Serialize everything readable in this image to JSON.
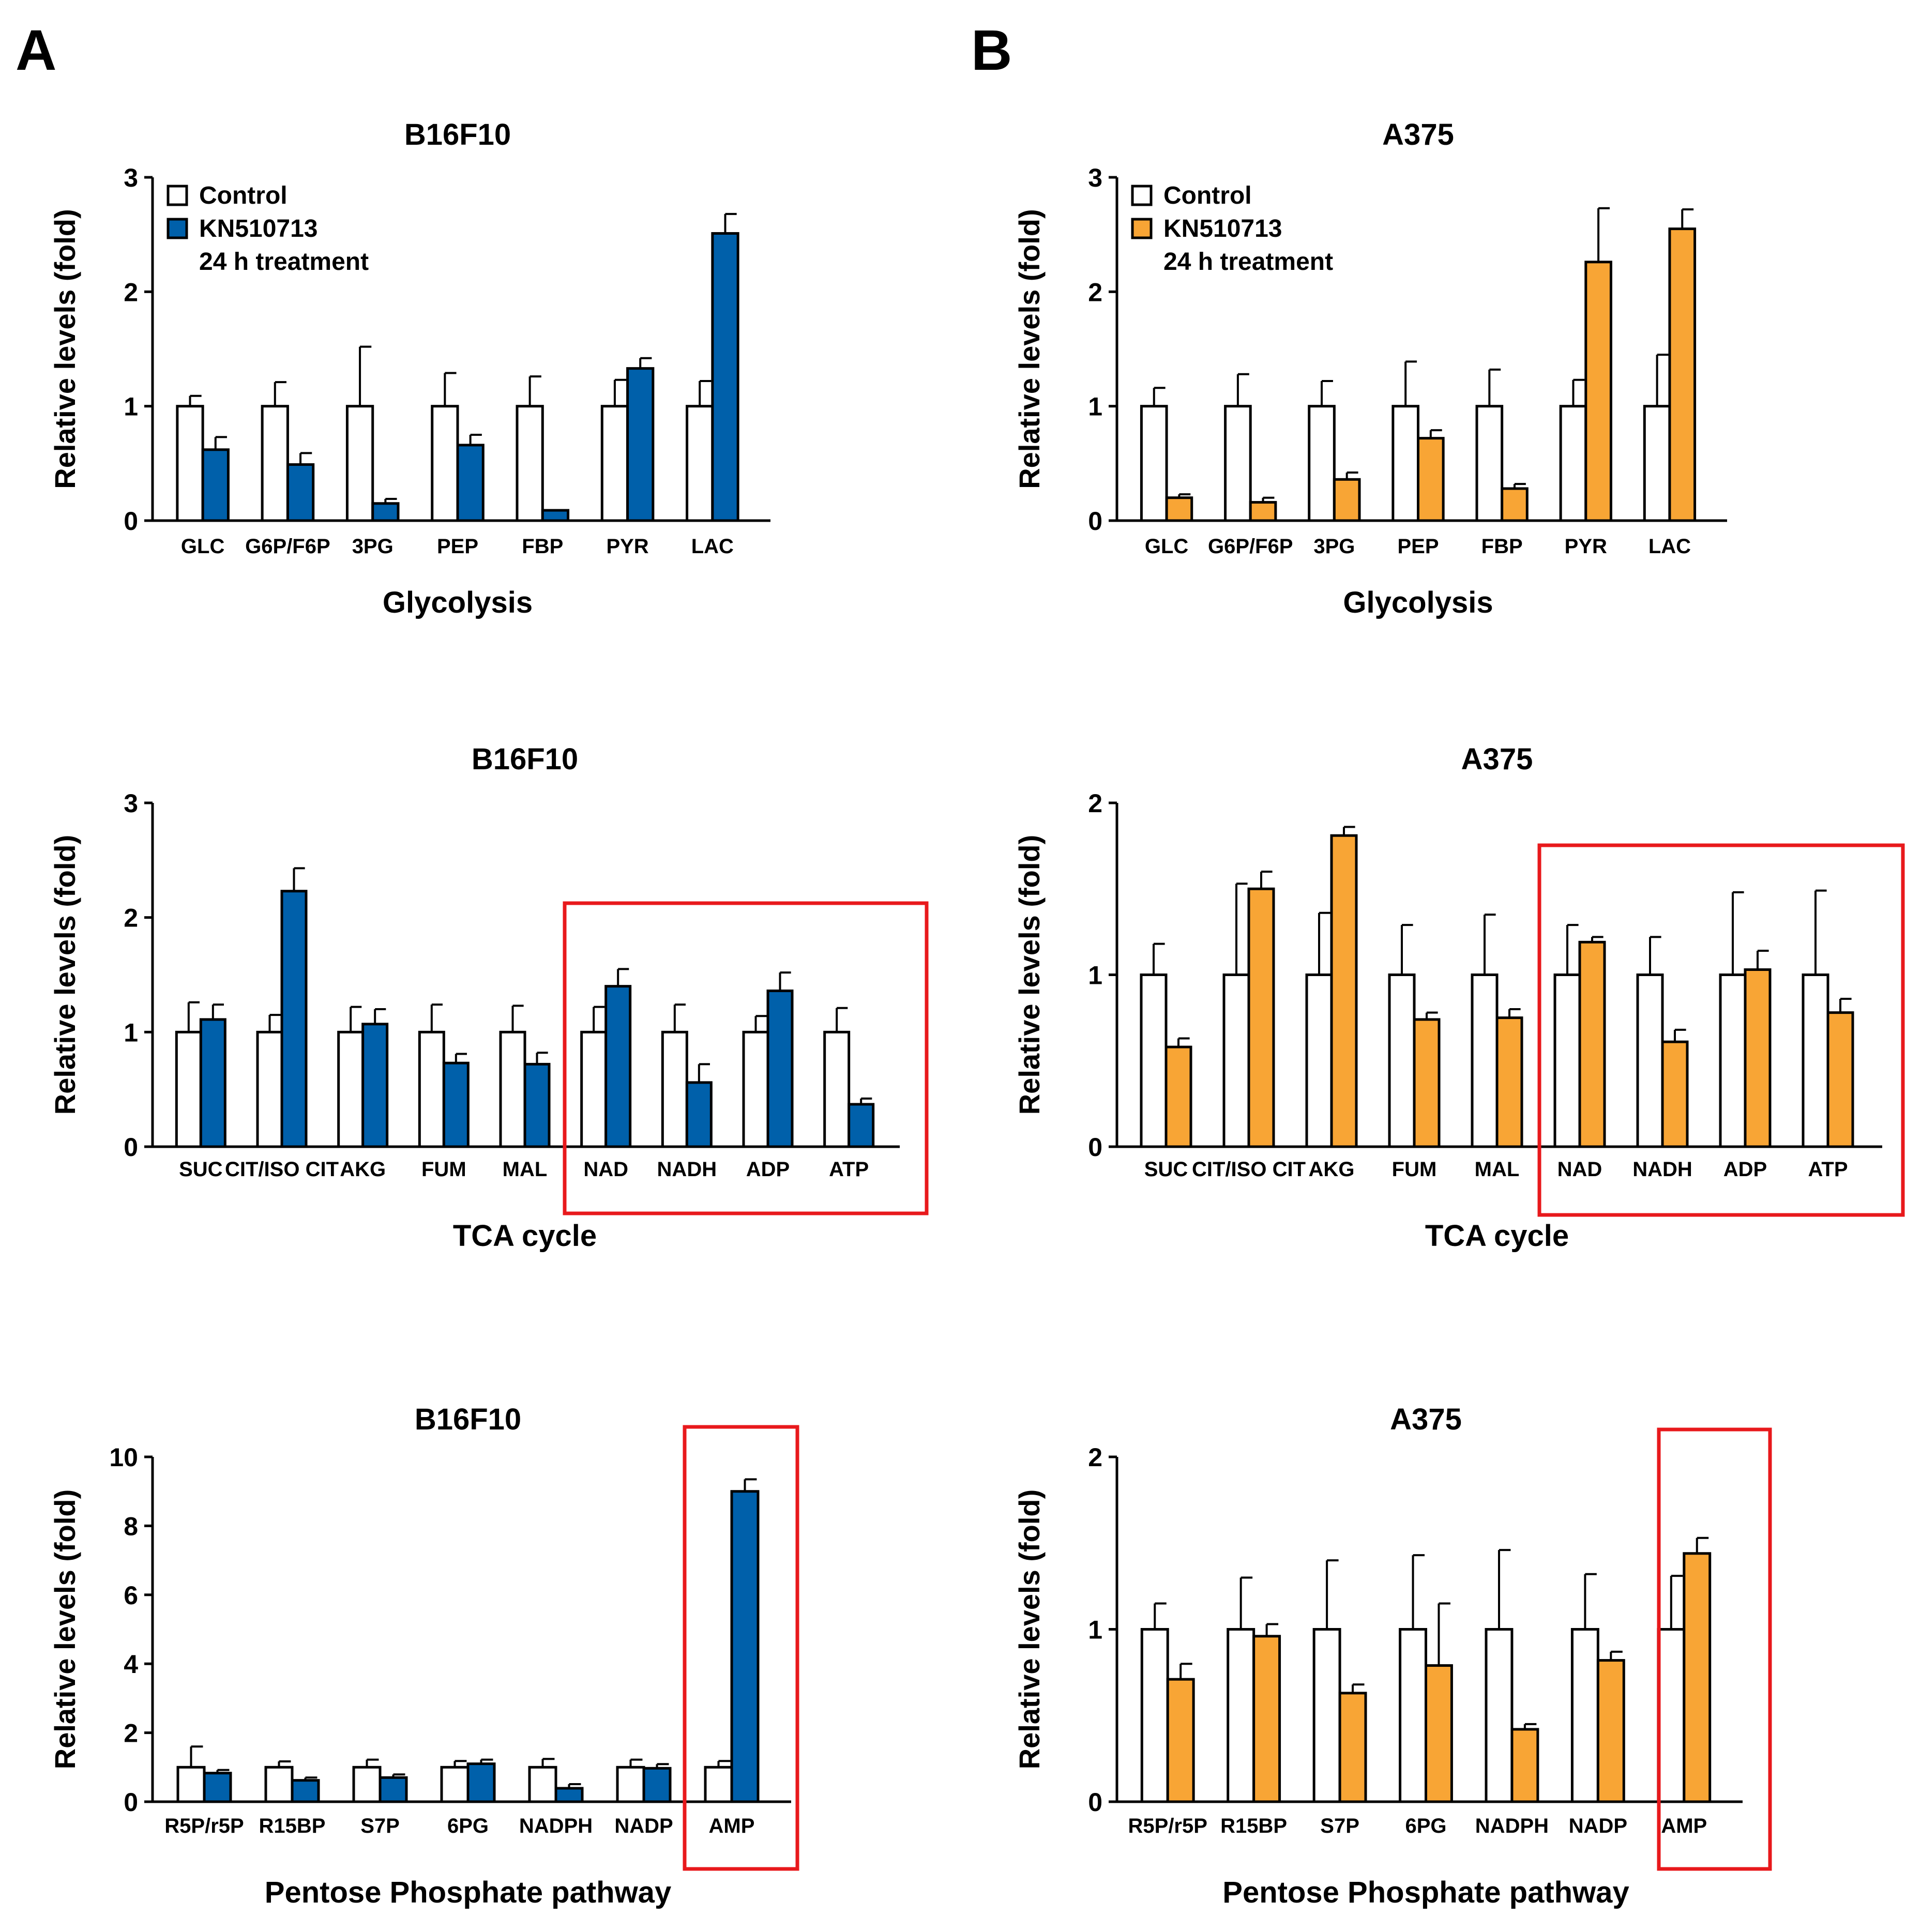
{
  "panel_labels": [
    "A",
    "B"
  ],
  "legend": {
    "control": "Control",
    "treatment": "KN510713",
    "note": "24 h treatment"
  },
  "colors": {
    "control": "#ffffff",
    "blue": "#0060aa",
    "orange": "#f8a535",
    "highlight": "#e8191c"
  },
  "chart_data": [
    {
      "id": "A-glycolysis",
      "type": "bar",
      "panel": "A",
      "title": "B16F10",
      "xlabel": "Glycolysis",
      "ylabel": "Relative levels (fold)",
      "ylim": [
        0,
        3
      ],
      "yticks": [
        "0",
        "1",
        "2",
        "3"
      ],
      "show_legend": true,
      "categories": [
        "GLC",
        "G6P/F6P",
        "3PG",
        "PEP",
        "FBP",
        "PYR",
        "LAC"
      ],
      "series": [
        {
          "name": "Control",
          "color": "#ffffff",
          "values": [
            1,
            1,
            1,
            1,
            1,
            1,
            1
          ],
          "errors": [
            0.09,
            0.21,
            0.52,
            0.29,
            0.26,
            0.23,
            0.22
          ]
        },
        {
          "name": "KN510713",
          "color": "#0060aa",
          "values": [
            0.62,
            0.49,
            0.15,
            0.66,
            0.09,
            1.33,
            2.51
          ],
          "errors": [
            0.11,
            0.1,
            0.04,
            0.09,
            0.0,
            0.09,
            0.17
          ]
        }
      ]
    },
    {
      "id": "B-glycolysis",
      "type": "bar",
      "panel": "B",
      "title": "A375",
      "xlabel": "Glycolysis",
      "ylabel": "Relative levels (fold)",
      "ylim": [
        0,
        3
      ],
      "yticks": [
        "0",
        "1",
        "2",
        "3"
      ],
      "show_legend": true,
      "categories": [
        "GLC",
        "G6P/F6P",
        "3PG",
        "PEP",
        "FBP",
        "PYR",
        "LAC"
      ],
      "series": [
        {
          "name": "Control",
          "color": "#ffffff",
          "values": [
            1,
            1,
            1,
            1,
            1,
            1,
            1
          ],
          "errors": [
            0.16,
            0.28,
            0.22,
            0.39,
            0.32,
            0.23,
            0.45
          ]
        },
        {
          "name": "KN510713",
          "color": "#f8a535",
          "values": [
            0.2,
            0.16,
            0.36,
            0.72,
            0.28,
            2.26,
            2.55
          ],
          "errors": [
            0.03,
            0.04,
            0.06,
            0.07,
            0.04,
            0.47,
            0.17
          ]
        }
      ]
    },
    {
      "id": "A-tca",
      "type": "bar",
      "panel": "A",
      "title": "B16F10",
      "xlabel": "TCA cycle",
      "ylabel": "Relative levels (fold)",
      "ylim": [
        0,
        3
      ],
      "yticks": [
        "0",
        "1",
        "2",
        "3"
      ],
      "show_legend": false,
      "categories": [
        "SUC",
        "CIT/ISO CIT",
        "AKG",
        "FUM",
        "MAL",
        "NAD",
        "NADH",
        "ADP",
        "ATP"
      ],
      "highlight_categories": [
        "NAD",
        "NADH",
        "ADP",
        "ATP"
      ],
      "series": [
        {
          "name": "Control",
          "color": "#ffffff",
          "values": [
            1,
            1,
            1,
            1,
            1,
            1,
            1,
            1,
            1
          ],
          "errors": [
            0.26,
            0.15,
            0.22,
            0.24,
            0.23,
            0.22,
            0.24,
            0.14,
            0.21
          ]
        },
        {
          "name": "KN510713",
          "color": "#0060aa",
          "values": [
            1.11,
            2.23,
            1.07,
            0.73,
            0.72,
            1.4,
            0.56,
            1.36,
            0.37
          ]
        },
        {
          "name": "KN510713 error",
          "values": [
            0.13,
            0.2,
            0.13,
            0.08,
            0.1,
            0.15,
            0.16,
            0.16,
            0.05
          ]
        }
      ]
    },
    {
      "id": "B-tca",
      "type": "bar",
      "panel": "B",
      "title": "A375",
      "xlabel": "TCA cycle",
      "ylabel": "Relative levels (fold)",
      "ylim": [
        0,
        2
      ],
      "yticks": [
        "0",
        "1",
        "2"
      ],
      "show_legend": false,
      "categories": [
        "SUC",
        "CIT/ISO CIT",
        "AKG",
        "FUM",
        "MAL",
        "NAD",
        "NADH",
        "ADP",
        "ATP"
      ],
      "highlight_categories": [
        "NAD",
        "NADH",
        "ADP",
        "ATP"
      ],
      "series": [
        {
          "name": "Control",
          "color": "#ffffff",
          "values": [
            1,
            1,
            1,
            1,
            1,
            1,
            1,
            1,
            1
          ],
          "errors": [
            0.18,
            0.53,
            0.36,
            0.29,
            0.35,
            0.29,
            0.22,
            0.48,
            0.49
          ]
        },
        {
          "name": "KN510713",
          "color": "#f8a535",
          "values": [
            0.58,
            1.5,
            1.81,
            0.74,
            0.75,
            1.19,
            0.61,
            1.03,
            0.78
          ]
        },
        {
          "name": "KN510713 error",
          "values": [
            0.05,
            0.1,
            0.05,
            0.04,
            0.05,
            0.03,
            0.07,
            0.11,
            0.08
          ]
        }
      ]
    },
    {
      "id": "A-ppp",
      "type": "bar",
      "panel": "A",
      "title": "B16F10",
      "xlabel": "Pentose Phosphate pathway",
      "ylabel": "Relative levels (fold)",
      "ylim": [
        0,
        10
      ],
      "yticks": [
        "0",
        "2",
        "4",
        "6",
        "8",
        "10"
      ],
      "show_legend": false,
      "categories": [
        "R5P/r5P",
        "R15BP",
        "S7P",
        "6PG",
        "NADPH",
        "NADP",
        "AMP"
      ],
      "highlight_categories": [
        "AMP"
      ],
      "series": [
        {
          "name": "Control",
          "color": "#ffffff",
          "values": [
            1,
            1,
            1,
            1,
            1,
            1,
            1
          ],
          "errors": [
            0.6,
            0.17,
            0.22,
            0.18,
            0.24,
            0.22,
            0.18
          ]
        },
        {
          "name": "KN510713",
          "color": "#0060aa",
          "values": [
            0.83,
            0.62,
            0.7,
            1.1,
            0.39,
            0.97,
            9.0
          ]
        },
        {
          "name": "KN510713 error",
          "values": [
            0.09,
            0.08,
            0.09,
            0.12,
            0.12,
            0.12,
            0.35
          ]
        }
      ]
    },
    {
      "id": "B-ppp",
      "type": "bar",
      "panel": "B",
      "title": "A375",
      "xlabel": "Pentose Phosphate pathway",
      "ylabel": "Relative levels (fold)",
      "ylim": [
        0,
        2
      ],
      "yticks": [
        "0",
        "1",
        "2"
      ],
      "show_legend": false,
      "categories": [
        "R5P/r5P",
        "R15BP",
        "S7P",
        "6PG",
        "NADPH",
        "NADP",
        "AMP"
      ],
      "highlight_categories": [
        "AMP"
      ],
      "series": [
        {
          "name": "Control",
          "color": "#ffffff",
          "values": [
            1,
            1,
            1,
            1,
            1,
            1,
            1
          ],
          "errors": [
            0.15,
            0.3,
            0.4,
            0.43,
            0.46,
            0.32,
            0.31
          ]
        },
        {
          "name": "KN510713",
          "color": "#f8a535",
          "values": [
            0.71,
            0.96,
            0.63,
            0.79,
            0.42,
            0.82,
            1.44
          ]
        },
        {
          "name": "KN510713 error",
          "values": [
            0.09,
            0.07,
            0.05,
            0.36,
            0.03,
            0.05,
            0.09
          ]
        }
      ]
    }
  ]
}
